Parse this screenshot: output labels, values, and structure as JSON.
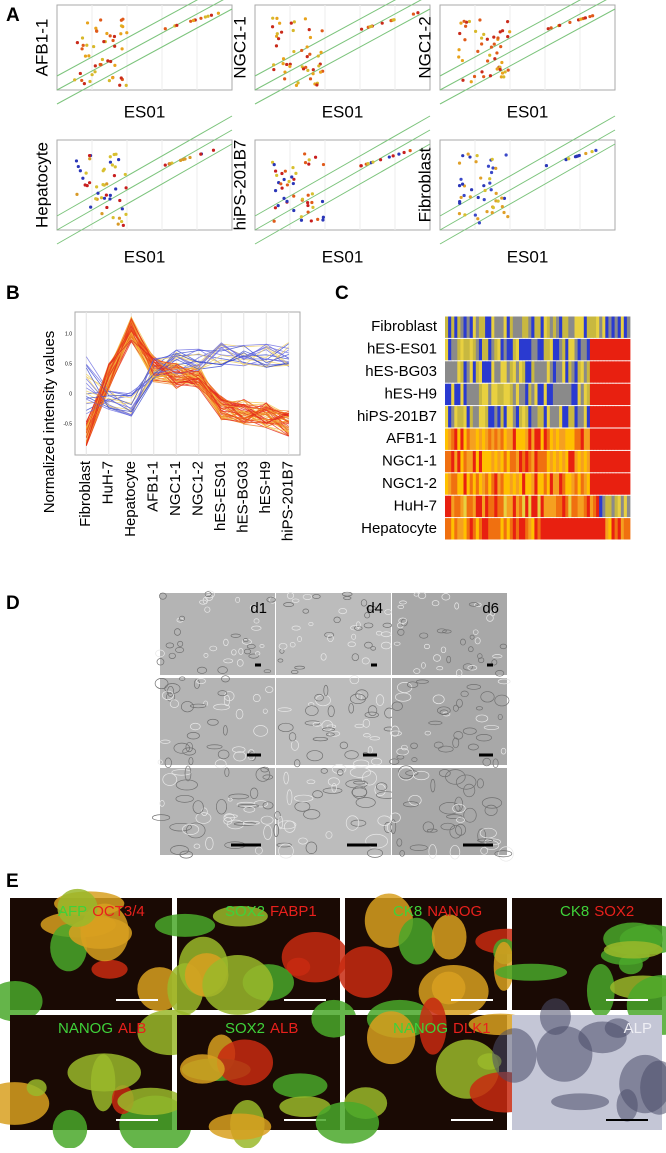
{
  "panels": [
    {
      "label": "A",
      "plots": [
        {
          "ylabel": "AFB1-1",
          "xlabel": "ES01"
        },
        {
          "ylabel": "NGC1-1",
          "xlabel": "ES01"
        },
        {
          "ylabel": "NGC1-2",
          "xlabel": "ES01"
        },
        {
          "ylabel": "Hepatocyte",
          "xlabel": "ES01"
        },
        {
          "ylabel": "hiPS-201B7",
          "xlabel": "ES01"
        },
        {
          "ylabel": "Fibroblast",
          "xlabel": "ES01"
        }
      ]
    },
    {
      "label": "B",
      "ylabel": "Normalized intensity values",
      "yticks": [
        "1.0",
        "0.5",
        "0",
        "-0.5"
      ],
      "categories": [
        "Fibroblast",
        "HuH-7",
        "Hepatocyte",
        "AFB1-1",
        "NGC1-1",
        "NGC1-2",
        "hES-ES01",
        "hES-BG03",
        "hES-H9",
        "hiPS-201B7"
      ]
    },
    {
      "label": "C",
      "rows": [
        "Fibroblast",
        "hES-ES01",
        "hES-BG03",
        "hES-H9",
        "hiPS-201B7",
        "AFB1-1",
        "NGC1-1",
        "NGC1-2",
        "HuH-7",
        "Hepatocyte"
      ]
    },
    {
      "label": "D",
      "columns": [
        "d1",
        "d4",
        "d6"
      ]
    },
    {
      "label": "E",
      "images": [
        {
          "stains": [
            {
              "text": "AFP",
              "color": "#3fd23a"
            },
            {
              "text": "OCT3/4",
              "color": "#e8201c"
            }
          ]
        },
        {
          "stains": [
            {
              "text": "SOX2",
              "color": "#3fd23a"
            },
            {
              "text": "FABP1",
              "color": "#e8201c"
            }
          ]
        },
        {
          "stains": [
            {
              "text": "CK8",
              "color": "#3fd23a"
            },
            {
              "text": "NANOG",
              "color": "#e8201c"
            }
          ]
        },
        {
          "stains": [
            {
              "text": "CK8",
              "color": "#3fd23a"
            },
            {
              "text": "SOX2",
              "color": "#e8201c"
            }
          ]
        },
        {
          "stains": [
            {
              "text": "NANOG",
              "color": "#3fd23a"
            },
            {
              "text": "ALB",
              "color": "#e8201c"
            }
          ]
        },
        {
          "stains": [
            {
              "text": "SOX2",
              "color": "#3fd23a"
            },
            {
              "text": "ALB",
              "color": "#e8201c"
            }
          ]
        },
        {
          "stains": [
            {
              "text": "NANOG",
              "color": "#3fd23a"
            },
            {
              "text": "DLK1",
              "color": "#e8201c"
            }
          ]
        },
        {
          "stains": [
            {
              "text": "ALP",
              "color": "#eeeef4"
            }
          ]
        }
      ]
    }
  ]
}
